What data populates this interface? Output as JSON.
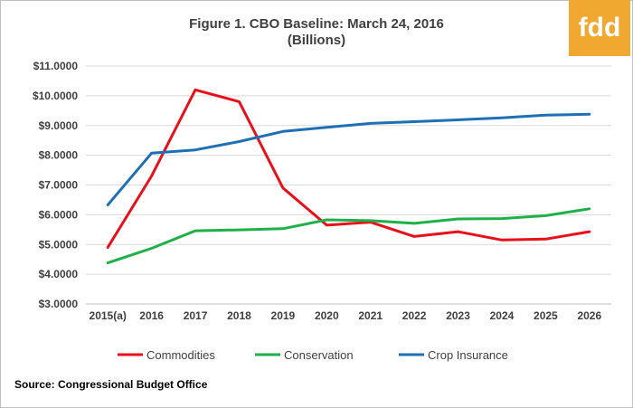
{
  "title_line1": "Figure 1.  CBO Baseline:  March 24, 2016",
  "title_line2": "(Billions)",
  "logo_text": "fdd",
  "source": "Source:  Congressional Budget Office",
  "colors": {
    "commodities": "#e8101a",
    "conservation": "#1fb04a",
    "crop_insurance": "#1f6fb4",
    "logo": "#f0a830",
    "grid": "#d9d9d9"
  },
  "chart_data": {
    "type": "line",
    "title": "Figure 1.  CBO Baseline:  March 24, 2016",
    "subtitle": "(Billions)",
    "xlabel": "",
    "ylabel": "",
    "categories": [
      "2015(a)",
      "2016",
      "2017",
      "2018",
      "2019",
      "2020",
      "2021",
      "2022",
      "2023",
      "2024",
      "2025",
      "2026"
    ],
    "y_ticks": [
      "$3.0000",
      "$4.0000",
      "$5.0000",
      "$6.0000",
      "$7.0000",
      "$8.0000",
      "$9.0000",
      "$10.0000",
      "$11.0000"
    ],
    "ylim": [
      3,
      11
    ],
    "grid": true,
    "legend": "bottom",
    "series": [
      {
        "name": "Commodities",
        "color": "#e8101a",
        "values": [
          4.9,
          7.3,
          10.2,
          9.8,
          6.9,
          5.65,
          5.75,
          5.27,
          5.43,
          5.15,
          5.18,
          5.43
        ]
      },
      {
        "name": "Conservation",
        "color": "#1fb04a",
        "values": [
          4.38,
          4.87,
          5.46,
          5.49,
          5.53,
          5.83,
          5.8,
          5.71,
          5.86,
          5.87,
          5.97,
          6.2
        ]
      },
      {
        "name": "Crop Insurance",
        "color": "#1f6fb4",
        "values": [
          6.33,
          8.07,
          8.18,
          8.46,
          8.8,
          8.94,
          9.07,
          9.13,
          9.19,
          9.26,
          9.35,
          9.38
        ]
      }
    ]
  }
}
